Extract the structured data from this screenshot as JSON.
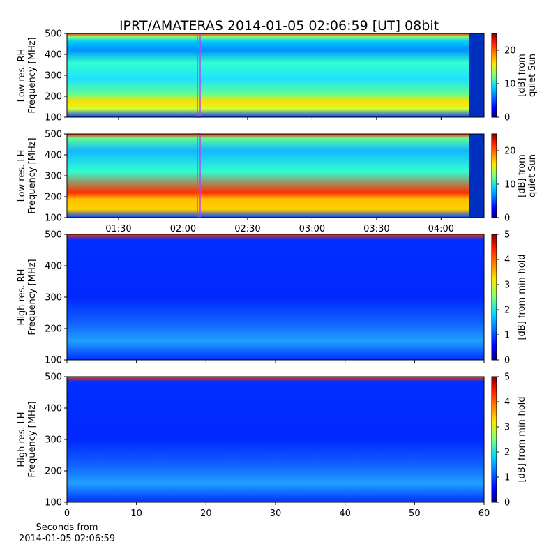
{
  "chart_data": [
    {
      "type": "heatmap",
      "title": "IPRT/AMATERAS 2014-01-05 02:06:59 [UT]   08bit",
      "ylabel": [
        "Low res. RH",
        "Frequency [MHz]"
      ],
      "ylim": [
        100,
        500
      ],
      "yticks": [
        100,
        200,
        300,
        400,
        500
      ],
      "colorbar": {
        "label": [
          "[dB] from",
          "quiet Sun"
        ],
        "lim": [
          0,
          25
        ],
        "ticks": [
          0,
          10,
          20
        ]
      }
    },
    {
      "type": "heatmap",
      "ylabel": [
        "Low res. LH",
        "Frequency [MHz]"
      ],
      "ylim": [
        100,
        500
      ],
      "yticks": [
        100,
        200,
        300,
        400,
        500
      ],
      "xlim": [
        "01:06",
        "04:20"
      ],
      "xticks": [
        "01:30",
        "02:00",
        "02:30",
        "03:00",
        "03:30",
        "04:00"
      ],
      "colorbar": {
        "label": [
          "[dB] from",
          "quiet Sun"
        ],
        "lim": [
          0,
          25
        ],
        "ticks": [
          0,
          10,
          20
        ]
      }
    },
    {
      "type": "heatmap",
      "ylabel": [
        "High res. RH",
        "Frequency [MHz]"
      ],
      "ylim": [
        100,
        500
      ],
      "yticks": [
        100,
        200,
        300,
        400,
        500
      ],
      "colorbar": {
        "label": [
          "[dB] from min-hold"
        ],
        "lim": [
          0,
          5
        ],
        "ticks": [
          0,
          1,
          2,
          3,
          4,
          5
        ]
      }
    },
    {
      "type": "heatmap",
      "ylabel": [
        "High res. LH",
        "Frequency [MHz]"
      ],
      "ylim": [
        100,
        500
      ],
      "yticks": [
        100,
        200,
        300,
        400,
        500
      ],
      "xlim": [
        0,
        60
      ],
      "xticks": [
        0,
        10,
        20,
        30,
        40,
        50,
        60
      ],
      "xlabel": [
        "Seconds from",
        "2014-01-05 02:06:59"
      ],
      "colorbar": {
        "label": [
          "[dB] from min-hold"
        ],
        "lim": [
          0,
          5
        ],
        "ticks": [
          0,
          1,
          2,
          3,
          4,
          5
        ]
      }
    }
  ]
}
